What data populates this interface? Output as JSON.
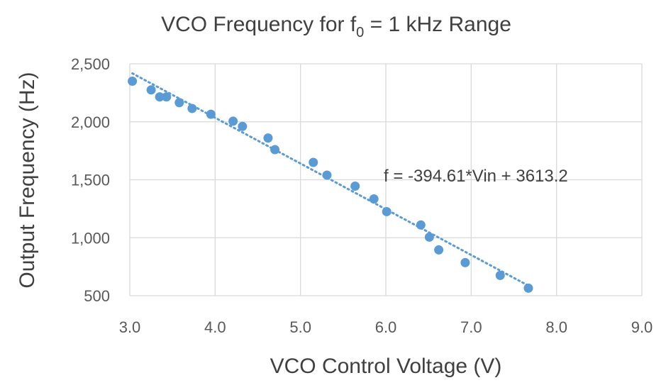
{
  "chart_data": {
    "type": "scatter",
    "title": {
      "prefix": "VCO Frequency for f",
      "subscript": "0",
      "suffix": " = 1 kHz Range"
    },
    "xlabel": "VCO Control Voltage (V)",
    "ylabel": "Output Frequency (Hz)",
    "xlim": [
      3.0,
      9.0
    ],
    "ylim": [
      500,
      2500
    ],
    "xticks": [
      3.0,
      4.0,
      5.0,
      6.0,
      7.0,
      8.0,
      9.0
    ],
    "xtick_labels": [
      "3.0",
      "4.0",
      "5.0",
      "6.0",
      "7.0",
      "8.0",
      "9.0"
    ],
    "yticks": [
      500,
      1000,
      1500,
      2000,
      2500
    ],
    "ytick_labels": [
      "500",
      "1,000",
      "1,500",
      "2,000",
      "2,500"
    ],
    "grid": true,
    "legend": "none",
    "series": [
      {
        "points": [
          [
            3.03,
            2350
          ],
          [
            3.25,
            2275
          ],
          [
            3.35,
            2215
          ],
          [
            3.43,
            2215
          ],
          [
            3.58,
            2165
          ],
          [
            3.73,
            2115
          ],
          [
            3.95,
            2065
          ],
          [
            4.21,
            2005
          ],
          [
            4.32,
            1960
          ],
          [
            4.62,
            1860
          ],
          [
            4.7,
            1760
          ],
          [
            5.15,
            1650
          ],
          [
            5.31,
            1540
          ],
          [
            5.64,
            1445
          ],
          [
            5.86,
            1335
          ],
          [
            6.01,
            1225
          ],
          [
            6.41,
            1110
          ],
          [
            6.51,
            1005
          ],
          [
            6.62,
            895
          ],
          [
            6.93,
            785
          ],
          [
            7.34,
            675
          ],
          [
            7.67,
            565
          ]
        ],
        "color": "#5b9bd5"
      }
    ],
    "trendline": {
      "slope": -394.61,
      "intercept": 3613.2,
      "x_range": [
        3.03,
        7.67
      ],
      "style": "dotted",
      "color": "#5b9bd5"
    },
    "annotation": "f = -394.61*Vin + 3613.2"
  }
}
